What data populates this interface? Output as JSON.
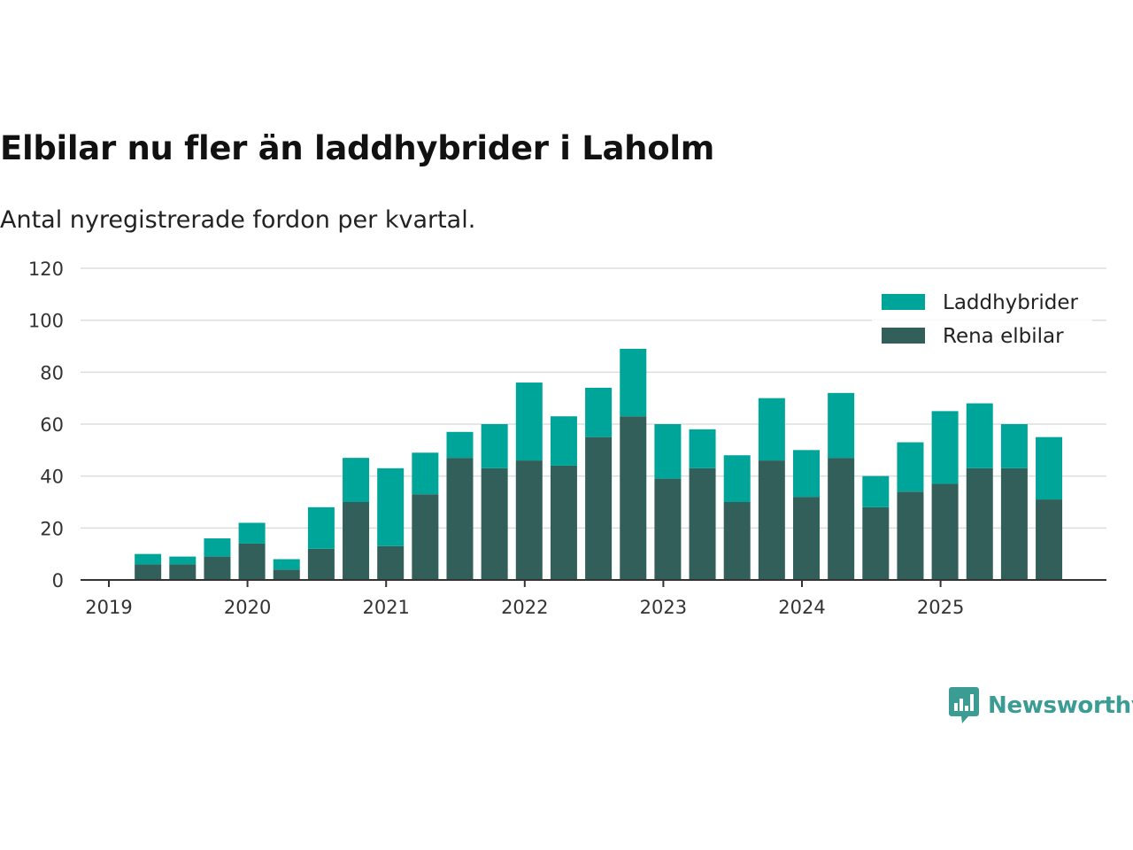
{
  "title": "Elbilar nu fler än laddhybrider i Laholm",
  "subtitle": "Antal nyregistrerade fordon per kvartal.",
  "brand": {
    "name": "Newsworthy",
    "color": "#3a9c93",
    "icon": "newsworthy-logo-icon"
  },
  "colors": {
    "laddhybrider": "#00a59a",
    "rena_elbilar": "#335f5b",
    "grid": "#dddddd",
    "axis": "#333333"
  },
  "chart_data": {
    "type": "bar",
    "stacked": true,
    "title": "Elbilar nu fler än laddhybrider i Laholm",
    "subtitle": "Antal nyregistrerade fordon per kvartal.",
    "xlabel": "",
    "ylabel": "",
    "ylim": [
      0,
      120
    ],
    "yticks": [
      "0",
      "20",
      "40",
      "60",
      "80",
      "100",
      "120"
    ],
    "xticks": [
      "2019",
      "2020",
      "2021",
      "2022",
      "2023",
      "2024",
      "2025"
    ],
    "legend_position": "top-right",
    "categories": [
      "2019 Q2",
      "2019 Q3",
      "2019 Q4",
      "2020 Q1",
      "2020 Q2",
      "2020 Q3",
      "2020 Q4",
      "2021 Q1",
      "2021 Q2",
      "2021 Q3",
      "2021 Q4",
      "2022 Q1",
      "2022 Q2",
      "2022 Q3",
      "2022 Q4",
      "2023 Q1",
      "2023 Q2",
      "2023 Q3",
      "2023 Q4",
      "2024 Q1",
      "2024 Q2",
      "2024 Q3",
      "2024 Q4",
      "2025 Q1",
      "2025 Q2",
      "2025 Q3",
      "2025 Q4"
    ],
    "series": [
      {
        "name": "Rena elbilar",
        "values": [
          6,
          6,
          9,
          14,
          4,
          12,
          30,
          13,
          33,
          47,
          43,
          46,
          44,
          55,
          63,
          39,
          43,
          30,
          46,
          32,
          47,
          28,
          34,
          37,
          43,
          43,
          31
        ]
      },
      {
        "name": "Laddhybrider",
        "values": [
          4,
          3,
          7,
          8,
          4,
          16,
          17,
          30,
          16,
          10,
          17,
          30,
          19,
          19,
          26,
          21,
          15,
          18,
          24,
          18,
          25,
          12,
          19,
          28,
          25,
          17,
          24
        ]
      }
    ],
    "legend": [
      "Laddhybrider",
      "Rena elbilar"
    ]
  }
}
